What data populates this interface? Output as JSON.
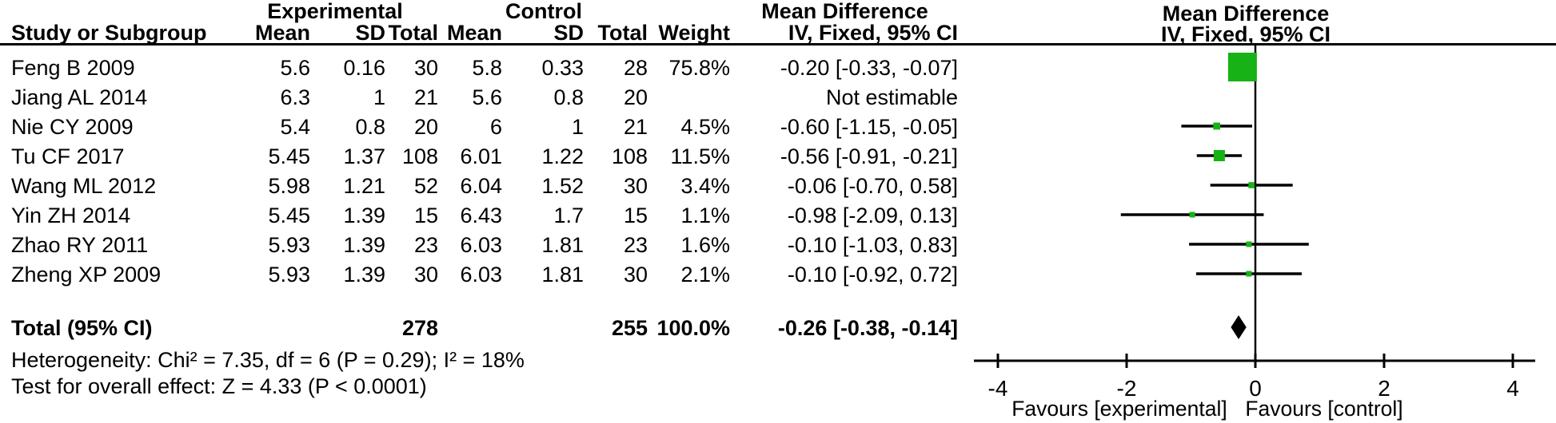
{
  "colors": {
    "marker_green": "#16b216",
    "line_black": "#000000"
  },
  "table": {
    "group_headers": {
      "experimental": "Experimental",
      "control": "Control",
      "mean_difference": "Mean Difference"
    },
    "columns": [
      "Study or Subgroup",
      "Mean",
      "SD",
      "Total",
      "Mean",
      "SD",
      "Total",
      "Weight",
      "IV, Fixed, 95% CI"
    ],
    "rows": [
      {
        "study": "Feng B 2009",
        "mean1": "5.6",
        "sd1": "0.16",
        "total1": "30",
        "mean2": "5.8",
        "sd2": "0.33",
        "total2": "28",
        "weight": "75.8%",
        "ci": "-0.20 [-0.33, -0.07]"
      },
      {
        "study": "Jiang AL 2014",
        "mean1": "6.3",
        "sd1": "1",
        "total1": "21",
        "mean2": "5.6",
        "sd2": "0.8",
        "total2": "20",
        "weight": "",
        "ci": "Not estimable"
      },
      {
        "study": "Nie CY 2009",
        "mean1": "5.4",
        "sd1": "0.8",
        "total1": "20",
        "mean2": "6",
        "sd2": "1",
        "total2": "21",
        "weight": "4.5%",
        "ci": "-0.60 [-1.15, -0.05]"
      },
      {
        "study": "Tu CF 2017",
        "mean1": "5.45",
        "sd1": "1.37",
        "total1": "108",
        "mean2": "6.01",
        "sd2": "1.22",
        "total2": "108",
        "weight": "11.5%",
        "ci": "-0.56 [-0.91, -0.21]"
      },
      {
        "study": "Wang ML 2012",
        "mean1": "5.98",
        "sd1": "1.21",
        "total1": "52",
        "mean2": "6.04",
        "sd2": "1.52",
        "total2": "30",
        "weight": "3.4%",
        "ci": "-0.06 [-0.70, 0.58]"
      },
      {
        "study": "Yin ZH 2014",
        "mean1": "5.45",
        "sd1": "1.39",
        "total1": "15",
        "mean2": "6.43",
        "sd2": "1.7",
        "total2": "15",
        "weight": "1.1%",
        "ci": "-0.98 [-2.09, 0.13]"
      },
      {
        "study": "Zhao RY 2011",
        "mean1": "5.93",
        "sd1": "1.39",
        "total1": "23",
        "mean2": "6.03",
        "sd2": "1.81",
        "total2": "23",
        "weight": "1.6%",
        "ci": "-0.10 [-1.03, 0.83]"
      },
      {
        "study": "Zheng XP  2009",
        "mean1": "5.93",
        "sd1": "1.39",
        "total1": "30",
        "mean2": "6.03",
        "sd2": "1.81",
        "total2": "30",
        "weight": "2.1%",
        "ci": "-0.10 [-0.92, 0.72]"
      }
    ],
    "total_row": {
      "label": "Total (95% CI)",
      "total1": "278",
      "total2": "255",
      "weight": "100.0%",
      "ci": "-0.26 [-0.38, -0.14]"
    }
  },
  "right_header": {
    "line1": "Mean Difference",
    "line2": "IV, Fixed, 95% CI"
  },
  "footnotes": {
    "heterogeneity": "Heterogeneity: Chi² = 7.35, df = 6 (P = 0.29); I² = 18%",
    "overall_effect": "Test for overall effect: Z = 4.33 (P < 0.0001)"
  },
  "chart_data": {
    "type": "forest",
    "effect_measure": "Mean Difference (IV, Fixed, 95% CI)",
    "x_axis": {
      "ticks": [
        -4,
        -2,
        0,
        2,
        4
      ],
      "min": -4.4,
      "max": 4.35,
      "zero_line": 0,
      "label_left": "Favours [experimental]",
      "label_right": "Favours [control]"
    },
    "studies": [
      {
        "name": "Feng B 2009",
        "md": -0.2,
        "lo": -0.33,
        "hi": -0.07,
        "weight": 75.8
      },
      {
        "name": "Jiang AL 2014",
        "md": null,
        "lo": null,
        "hi": null,
        "weight": null
      },
      {
        "name": "Nie CY 2009",
        "md": -0.6,
        "lo": -1.15,
        "hi": -0.05,
        "weight": 4.5
      },
      {
        "name": "Tu CF 2017",
        "md": -0.56,
        "lo": -0.91,
        "hi": -0.21,
        "weight": 11.5
      },
      {
        "name": "Wang ML 2012",
        "md": -0.06,
        "lo": -0.7,
        "hi": 0.58,
        "weight": 3.4
      },
      {
        "name": "Yin ZH 2014",
        "md": -0.98,
        "lo": -2.09,
        "hi": 0.13,
        "weight": 1.1
      },
      {
        "name": "Zhao RY 2011",
        "md": -0.1,
        "lo": -1.03,
        "hi": 0.83,
        "weight": 1.6
      },
      {
        "name": "Zheng XP 2009",
        "md": -0.1,
        "lo": -0.92,
        "hi": 0.72,
        "weight": 2.1
      }
    ],
    "total": {
      "label": "Total (95% CI)",
      "md": -0.26,
      "lo": -0.38,
      "hi": -0.14,
      "weight": 100.0
    }
  }
}
